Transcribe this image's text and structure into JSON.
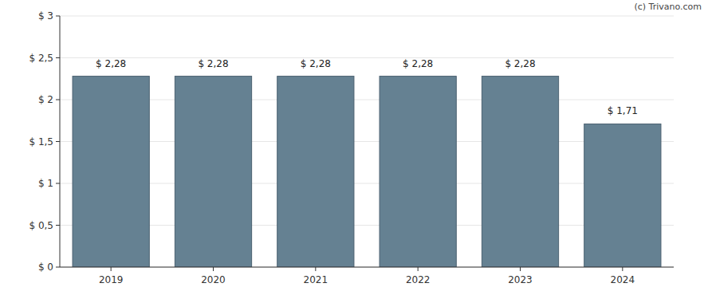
{
  "chart_data": {
    "type": "bar",
    "annotations": [
      "(c) Trivano.com"
    ],
    "categories": [
      "2019",
      "2020",
      "2021",
      "2022",
      "2023",
      "2024"
    ],
    "values": [
      2.28,
      2.28,
      2.28,
      2.28,
      2.28,
      1.71
    ],
    "value_labels": [
      "$ 2,28",
      "$ 2,28",
      "$ 2,28",
      "$ 2,28",
      "$ 2,28",
      "$ 1,71"
    ],
    "data_labels": true,
    "color": "#658192",
    "ylim": [
      0,
      3
    ],
    "yticks": [
      {
        "value": 0,
        "label": "$ 0"
      },
      {
        "value": 0.5,
        "label": "$ 0,5"
      },
      {
        "value": 1,
        "label": "$ 1"
      },
      {
        "value": 1.5,
        "label": "$ 1,5"
      },
      {
        "value": 2,
        "label": "$ 2"
      },
      {
        "value": 2.5,
        "label": "$ 2,5"
      },
      {
        "value": 3,
        "label": "$ 3"
      }
    ],
    "grid": true
  }
}
